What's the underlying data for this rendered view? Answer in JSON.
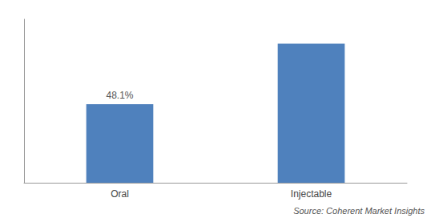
{
  "chart_data": {
    "type": "bar",
    "categories": [
      "Oral",
      "Injectable"
    ],
    "values": [
      48.1,
      85.0
    ],
    "colors": [
      "#4f81bd",
      "#4f81bd"
    ],
    "data_labels": true,
    "value_labels": [
      "48.1%",
      null
    ],
    "annotations": [
      "Source: Coherent Market Insights"
    ],
    "ylim": [
      0,
      100
    ],
    "yticks": [],
    "grid": false,
    "tick_labels": "x"
  }
}
